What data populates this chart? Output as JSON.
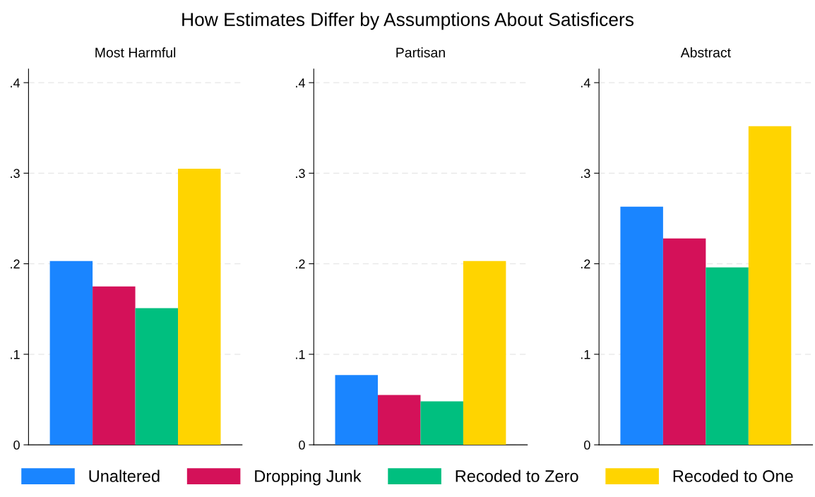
{
  "chart_data": [
    {
      "type": "bar",
      "title": "How Estimates Differ by Assumptions About Satisficers",
      "subtitle": "Most Harmful",
      "categories": [
        null
      ],
      "ylim": [
        0,
        0.415
      ],
      "yticks": [
        {
          "value": 0,
          "label": "0"
        },
        {
          "value": 0.1,
          "label": ".1"
        },
        {
          "value": 0.2,
          "label": ".2"
        },
        {
          "value": 0.3,
          "label": ".3"
        },
        {
          "value": 0.4,
          "label": ".4"
        }
      ],
      "grid": "y",
      "legend": "bottom",
      "series": [
        {
          "name": "Unaltered",
          "color": "#1a85ff",
          "values": [
            0.203
          ]
        },
        {
          "name": "Dropping Junk",
          "color": "#d41159",
          "values": [
            0.175
          ]
        },
        {
          "name": "Recoded to Zero",
          "color": "#00bf7f",
          "values": [
            0.151
          ]
        },
        {
          "name": "Recoded to One",
          "color": "#ffd400",
          "values": [
            0.305
          ]
        }
      ]
    },
    {
      "type": "bar",
      "subtitle": "Partisan",
      "categories": [
        null
      ],
      "ylim": [
        0,
        0.415
      ],
      "yticks": [
        {
          "value": 0,
          "label": "0"
        },
        {
          "value": 0.1,
          "label": ".1"
        },
        {
          "value": 0.2,
          "label": ".2"
        },
        {
          "value": 0.3,
          "label": ".3"
        },
        {
          "value": 0.4,
          "label": ".4"
        }
      ],
      "grid": "y",
      "series": [
        {
          "color": "#1a85ff",
          "values": [
            0.077
          ]
        },
        {
          "color": "#d41159",
          "values": [
            0.055
          ]
        },
        {
          "color": "#00bf7f",
          "values": [
            0.048
          ]
        },
        {
          "color": "#ffd400",
          "values": [
            0.203
          ]
        }
      ]
    },
    {
      "type": "bar",
      "subtitle": "Abstract",
      "categories": [
        null
      ],
      "ylim": [
        0,
        0.415
      ],
      "yticks": [
        {
          "value": 0,
          "label": "0"
        },
        {
          "value": 0.1,
          "label": ".1"
        },
        {
          "value": 0.2,
          "label": ".2"
        },
        {
          "value": 0.3,
          "label": ".3"
        },
        {
          "value": 0.4,
          "label": ".4"
        }
      ],
      "grid": "y",
      "series": [
        {
          "color": "#1a85ff",
          "values": [
            0.263
          ]
        },
        {
          "color": "#d41159",
          "values": [
            0.228
          ]
        },
        {
          "color": "#00bf7f",
          "values": [
            0.196
          ]
        },
        {
          "color": "#ffd400",
          "values": [
            0.352
          ]
        }
      ]
    }
  ]
}
